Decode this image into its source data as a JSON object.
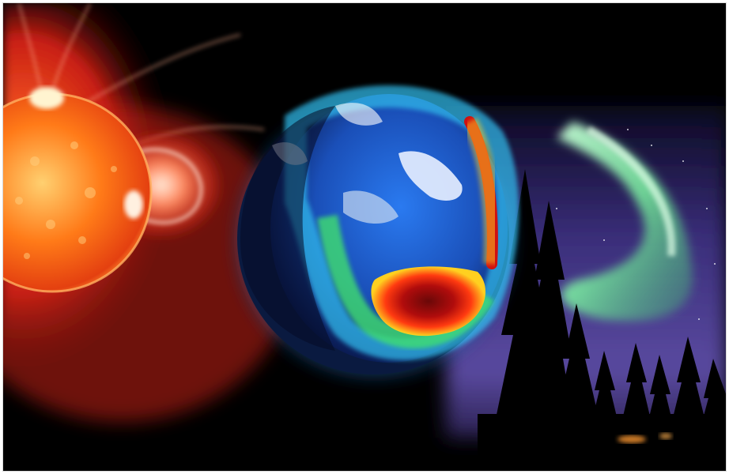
{
  "scene": {
    "panels": [
      {
        "name": "sun-corona",
        "subject": "sun-with-coronal-mass-ejection"
      },
      {
        "name": "earth-aurora-map",
        "subject": "earth-with-auroral-oval-heatmap"
      },
      {
        "name": "aurora-night-sky",
        "subject": "green-aurora-over-pine-forest"
      }
    ],
    "colors": {
      "background": "#000000",
      "sun_core": "#ff6a10",
      "corona": "#e0301a",
      "earth_ocean": "#1f5fd0",
      "auroral_oval": "#d01010",
      "aurora_green": "#8fffb0",
      "sky_purple": "#4a3a8a"
    }
  }
}
